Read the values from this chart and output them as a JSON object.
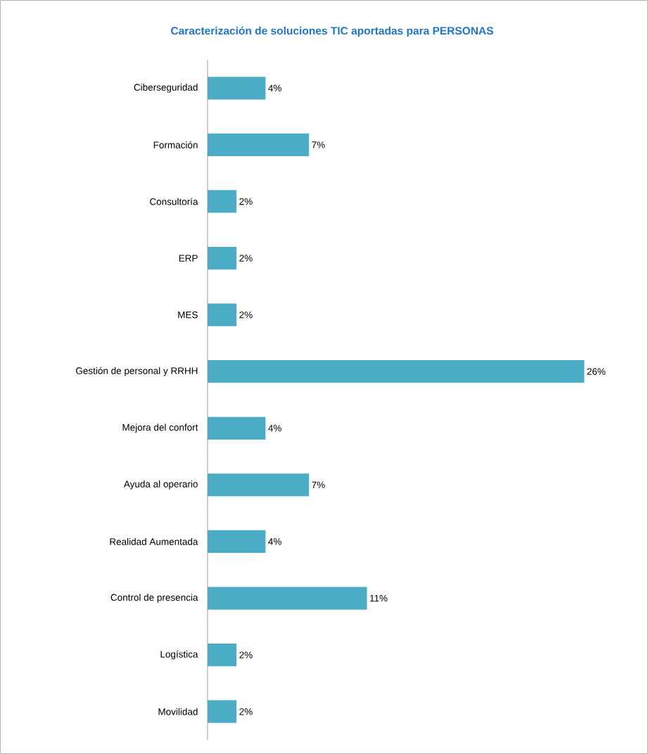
{
  "chart_data": {
    "type": "bar",
    "orientation": "horizontal",
    "title": "Caracterización de soluciones TIC aportadas para PERSONAS",
    "categories": [
      "Ciberseguridad",
      "Formación",
      "Consultoría",
      "ERP",
      "MES",
      "Gestión de personal y RRHH",
      "Mejora del confort",
      "Ayuda al operario",
      "Realidad Aumentada",
      "Control de presencia",
      "Logística",
      "Movilidad"
    ],
    "values": [
      4,
      7,
      2,
      2,
      2,
      26,
      4,
      7,
      4,
      11,
      2,
      2
    ],
    "value_labels": [
      "4%",
      "7%",
      "2%",
      "2%",
      "2%",
      "26%",
      "4%",
      "7%",
      "4%",
      "11%",
      "2%",
      "2%"
    ],
    "color": "#4bacc6"
  }
}
